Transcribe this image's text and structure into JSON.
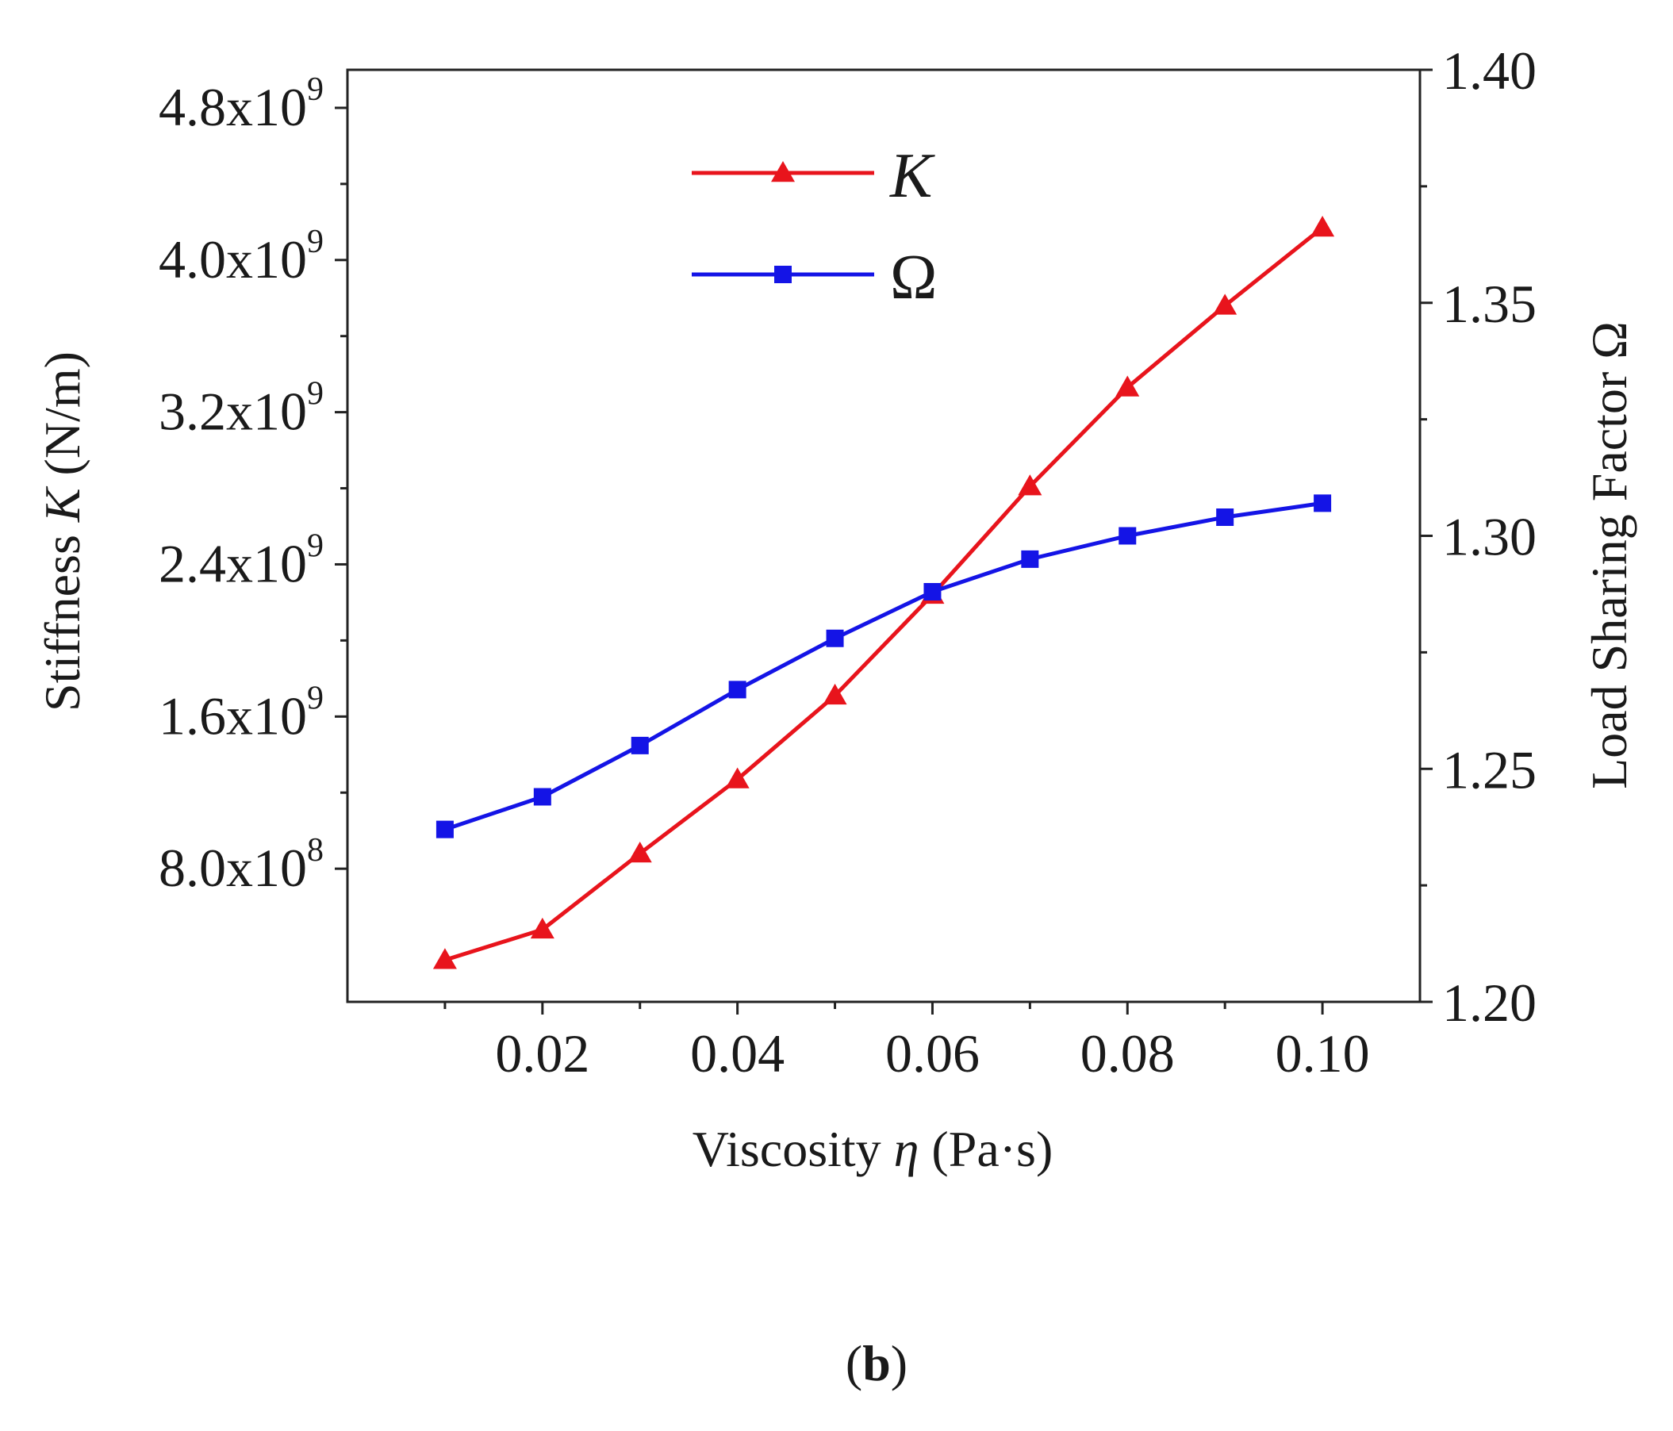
{
  "chart_data": {
    "type": "line",
    "xlabel_main": "Viscosity ",
    "xlabel_symbol": "η",
    "xlabel_unit": " (Pa·s)",
    "ylabel_left_main": "Stiffness ",
    "ylabel_left_symbol": "K",
    "ylabel_left_unit": " (N/m)",
    "ylabel_right": "Load Sharing Factor Ω",
    "panel_label_open": "(",
    "panel_label_letter": "b",
    "panel_label_close": ")",
    "x": [
      0.01,
      0.02,
      0.03,
      0.04,
      0.05,
      0.06,
      0.07,
      0.08,
      0.09,
      0.1
    ],
    "xlim": [
      0.0,
      0.11
    ],
    "x_ticks": [
      0.02,
      0.04,
      0.06,
      0.08,
      0.1
    ],
    "x_tick_labels": [
      "0.02",
      "0.04",
      "0.06",
      "0.08",
      "0.10"
    ],
    "y_left_lim": [
      100000000.0,
      5000000000.0
    ],
    "y_left_ticks": [
      {
        "value": 800000000.0,
        "mant": "8.0x10",
        "exp": "8"
      },
      {
        "value": 1600000000.0,
        "mant": "1.6x10",
        "exp": "9"
      },
      {
        "value": 2400000000.0,
        "mant": "2.4x10",
        "exp": "9"
      },
      {
        "value": 3200000000.0,
        "mant": "3.2x10",
        "exp": "9"
      },
      {
        "value": 4000000000.0,
        "mant": "4.0x10",
        "exp": "9"
      },
      {
        "value": 4800000000.0,
        "mant": "4.8x10",
        "exp": "9"
      }
    ],
    "y_right_lim": [
      1.2,
      1.4
    ],
    "y_right_ticks": [
      1.2,
      1.25,
      1.3,
      1.35,
      1.4
    ],
    "y_right_tick_labels": [
      "1.20",
      "1.25",
      "1.30",
      "1.35",
      "1.40"
    ],
    "series": [
      {
        "name": "K",
        "axis": "left",
        "color": "#e8141c",
        "marker": "triangle",
        "values": [
          320000000.0,
          480000000.0,
          880000000.0,
          1270000000.0,
          1710000000.0,
          2240000000.0,
          2810000000.0,
          3330000000.0,
          3760000000.0,
          4170000000.0
        ]
      },
      {
        "name": "Ω",
        "axis": "right",
        "color": "#1414e6",
        "marker": "square",
        "values": [
          1.237,
          1.244,
          1.255,
          1.267,
          1.278,
          1.288,
          1.295,
          1.3,
          1.304,
          1.307
        ]
      }
    ],
    "legend_position": "top-left"
  }
}
